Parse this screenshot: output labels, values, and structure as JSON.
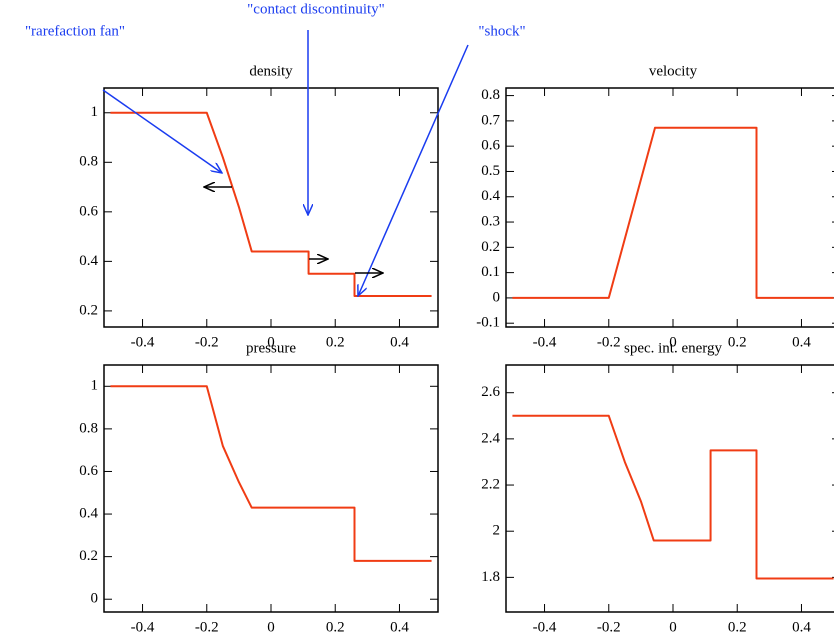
{
  "chart_data": [
    {
      "type": "line",
      "title": "density",
      "annotations": [
        "\"rarefaction fan\"",
        "\"contact discontinuity\"",
        "\"shock\""
      ],
      "x": [
        -0.5,
        -0.2,
        -0.15,
        -0.1,
        -0.06,
        0.117,
        0.117,
        0.26,
        0.26,
        0.5
      ],
      "series": [
        {
          "color": "#f03c14",
          "values": [
            1,
            1,
            0.82,
            0.62,
            0.44,
            0.44,
            0.35,
            0.35,
            0.26,
            0.26
          ]
        }
      ],
      "xlim": [
        -0.52,
        0.52
      ],
      "xticks": [
        -0.4,
        -0.2,
        0,
        0.2,
        0.4
      ],
      "ylim": [
        0.135,
        1.1
      ],
      "yticks": [
        0.2,
        0.4,
        0.6,
        0.8,
        1
      ]
    },
    {
      "type": "line",
      "title": "velocity",
      "x": [
        -0.5,
        -0.2,
        -0.056,
        0.26,
        0.26,
        0.5
      ],
      "series": [
        {
          "color": "#f03c14",
          "values": [
            0,
            0,
            0.673,
            0.673,
            0,
            0
          ]
        }
      ],
      "xlim": [
        -0.52,
        0.52
      ],
      "xticks": [
        -0.4,
        -0.2,
        0,
        0.2,
        0.4
      ],
      "ylim": [
        -0.115,
        0.83
      ],
      "yticks": [
        -0.1,
        0,
        0.1,
        0.2,
        0.3,
        0.4,
        0.5,
        0.6,
        0.7,
        0.8
      ]
    },
    {
      "type": "line",
      "title": "pressure",
      "x": [
        -0.5,
        -0.2,
        -0.15,
        -0.1,
        -0.06,
        0.26,
        0.26,
        0.5
      ],
      "series": [
        {
          "color": "#f03c14",
          "values": [
            1,
            1,
            0.72,
            0.55,
            0.43,
            0.43,
            0.18,
            0.18
          ]
        }
      ],
      "xlim": [
        -0.52,
        0.52
      ],
      "xticks": [
        -0.4,
        -0.2,
        0,
        0.2,
        0.4
      ],
      "ylim": [
        -0.06,
        1.1
      ],
      "yticks": [
        0,
        0.2,
        0.4,
        0.6,
        0.8,
        1
      ]
    },
    {
      "type": "line",
      "title": "spec. int. energy",
      "x": [
        -0.5,
        -0.2,
        -0.15,
        -0.1,
        -0.06,
        0.117,
        0.117,
        0.26,
        0.26,
        0.5
      ],
      "series": [
        {
          "color": "#f03c14",
          "values": [
            2.5,
            2.5,
            2.3,
            2.13,
            1.96,
            1.96,
            2.35,
            2.35,
            1.795,
            1.795
          ]
        }
      ],
      "xlim": [
        -0.52,
        0.52
      ],
      "xticks": [
        -0.4,
        -0.2,
        0,
        0.2,
        0.4
      ],
      "ylim": [
        1.65,
        2.72
      ],
      "yticks": [
        1.8,
        2,
        2.2,
        2.4,
        2.6
      ]
    }
  ]
}
